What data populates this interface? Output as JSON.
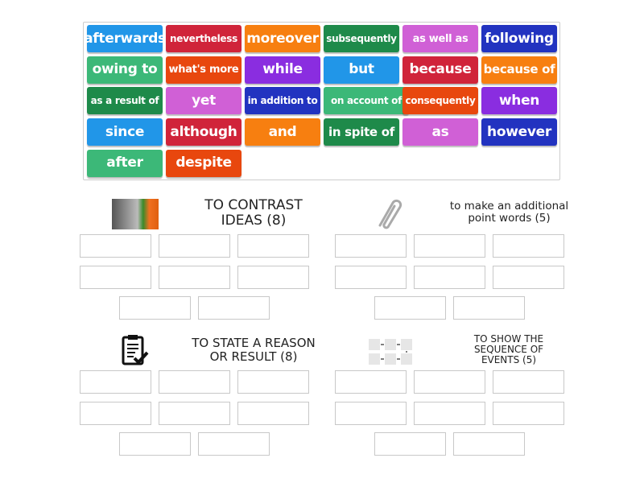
{
  "tiles": [
    {
      "label": "afterwards",
      "color": "#2196e8"
    },
    {
      "label": "nevertheless",
      "color": "#d0243a"
    },
    {
      "label": "moreover",
      "color": "#f77f10"
    },
    {
      "label": "subsequently",
      "color": "#1e8a4a"
    },
    {
      "label": "as well as",
      "color": "#d060d6"
    },
    {
      "label": "following",
      "color": "#2233c0"
    },
    {
      "label": "owing to",
      "color": "#3cb878"
    },
    {
      "label": "what's more",
      "color": "#e8470e"
    },
    {
      "label": "while",
      "color": "#8a2de0"
    },
    {
      "label": "but",
      "color": "#2196e8"
    },
    {
      "label": "because",
      "color": "#d0243a"
    },
    {
      "label": "because of",
      "color": "#f77f10"
    },
    {
      "label": "as a result of",
      "color": "#1e8a4a"
    },
    {
      "label": "yet",
      "color": "#d060d6"
    },
    {
      "label": "in addition to",
      "color": "#2233c0"
    },
    {
      "label": "on account of",
      "color": "#3cb878"
    },
    {
      "label": "consequently",
      "color": "#e8470e"
    },
    {
      "label": "when",
      "color": "#8a2de0"
    },
    {
      "label": "since",
      "color": "#2196e8"
    },
    {
      "label": "although",
      "color": "#d0243a"
    },
    {
      "label": "and",
      "color": "#f77f10"
    },
    {
      "label": "in spite of",
      "color": "#1e8a4a"
    },
    {
      "label": "as",
      "color": "#d060d6"
    },
    {
      "label": "however",
      "color": "#2233c0"
    },
    {
      "label": "after",
      "color": "#3cb878"
    },
    {
      "label": "despite",
      "color": "#e8470e"
    }
  ],
  "groups": [
    {
      "title": "TO CONTRAST IDEAS (8)",
      "icon": "flower-image-icon",
      "slots": 8
    },
    {
      "title": "to make an additional point words (5)",
      "icon": "paperclip-icon",
      "slots": 8
    },
    {
      "title": "TO STATE A REASON OR RESULT (8)",
      "icon": "clipboard-check-icon",
      "slots": 8
    },
    {
      "title": "TO SHOW THE SEQUENCE OF EVENTS (5)",
      "icon": "flowchart-icon",
      "slots": 8
    }
  ]
}
